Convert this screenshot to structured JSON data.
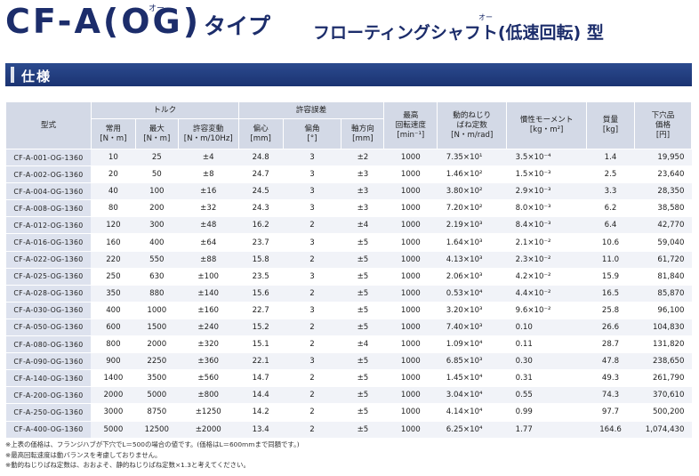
{
  "title": {
    "main_prefix": "CF-A",
    "main_paren_open": "(",
    "main_og": "OG",
    "main_paren_close": ")",
    "ruby_og": "オー",
    "type_label": "タイプ",
    "subtitle": "フローティングシャフト(低速回転) 型",
    "ruby_sub": "オー"
  },
  "section": {
    "label": "仕様"
  },
  "table": {
    "header": {
      "model": "型式",
      "torque_group": "トルク",
      "torque_rated": "常用",
      "torque_rated_unit": "[N・m]",
      "torque_max": "最大",
      "torque_max_unit": "[N・m]",
      "torque_var": "許容変動",
      "torque_var_unit": "[N・m/10Hz]",
      "misalign_group": "許容誤差",
      "offset": "偏心",
      "offset_unit": "[mm]",
      "angle": "偏角",
      "angle_unit": "[°]",
      "axial": "軸方向",
      "axial_unit": "[mm]",
      "speed_l1": "最高",
      "speed_l2": "回転速度",
      "speed_unit": "[min⁻¹]",
      "stiff_l1": "動的ねじり",
      "stiff_l2": "ばね定数",
      "stiff_unit": "[N・m/rad]",
      "inertia": "慣性モーメント",
      "inertia_unit": "[kg・m²]",
      "mass": "質量",
      "mass_unit": "[kg]",
      "price_l1": "下穴品",
      "price_l2": "価格",
      "price_unit": "[円]"
    },
    "rows": [
      [
        "CF-A-001-OG-1360",
        "10",
        "25",
        "±4",
        "24.8",
        "3",
        "±2",
        "1000",
        "7.35×10¹",
        "3.5×10⁻⁴",
        "1.4",
        "19,950"
      ],
      [
        "CF-A-002-OG-1360",
        "20",
        "50",
        "±8",
        "24.7",
        "3",
        "±3",
        "1000",
        "1.46×10²",
        "1.5×10⁻³",
        "2.5",
        "23,640"
      ],
      [
        "CF-A-004-OG-1360",
        "40",
        "100",
        "±16",
        "24.5",
        "3",
        "±3",
        "1000",
        "3.80×10²",
        "2.9×10⁻³",
        "3.3",
        "28,350"
      ],
      [
        "CF-A-008-OG-1360",
        "80",
        "200",
        "±32",
        "24.3",
        "3",
        "±3",
        "1000",
        "7.20×10²",
        "8.0×10⁻³",
        "6.2",
        "38,580"
      ],
      [
        "CF-A-012-OG-1360",
        "120",
        "300",
        "±48",
        "16.2",
        "2",
        "±4",
        "1000",
        "2.19×10³",
        "8.4×10⁻³",
        "6.4",
        "42,770"
      ],
      [
        "CF-A-016-OG-1360",
        "160",
        "400",
        "±64",
        "23.7",
        "3",
        "±5",
        "1000",
        "1.64×10³",
        "2.1×10⁻²",
        "10.6",
        "59,040"
      ],
      [
        "CF-A-022-OG-1360",
        "220",
        "550",
        "±88",
        "15.8",
        "2",
        "±5",
        "1000",
        "4.13×10³",
        "2.3×10⁻²",
        "11.0",
        "61,720"
      ],
      [
        "CF-A-025-OG-1360",
        "250",
        "630",
        "±100",
        "23.5",
        "3",
        "±5",
        "1000",
        "2.06×10³",
        "4.2×10⁻²",
        "15.9",
        "81,840"
      ],
      [
        "CF-A-028-OG-1360",
        "350",
        "880",
        "±140",
        "15.6",
        "2",
        "±5",
        "1000",
        "0.53×10⁴",
        "4.4×10⁻²",
        "16.5",
        "85,870"
      ],
      [
        "CF-A-030-OG-1360",
        "400",
        "1000",
        "±160",
        "22.7",
        "3",
        "±5",
        "1000",
        "3.20×10³",
        "9.6×10⁻²",
        "25.8",
        "96,100"
      ],
      [
        "CF-A-050-OG-1360",
        "600",
        "1500",
        "±240",
        "15.2",
        "2",
        "±5",
        "1000",
        "7.40×10³",
        "0.10",
        "26.6",
        "104,830"
      ],
      [
        "CF-A-080-OG-1360",
        "800",
        "2000",
        "±320",
        "15.1",
        "2",
        "±4",
        "1000",
        "1.09×10⁴",
        "0.11",
        "28.7",
        "131,820"
      ],
      [
        "CF-A-090-OG-1360",
        "900",
        "2250",
        "±360",
        "22.1",
        "3",
        "±5",
        "1000",
        "6.85×10³",
        "0.30",
        "47.8",
        "238,650"
      ],
      [
        "CF-A-140-OG-1360",
        "1400",
        "3500",
        "±560",
        "14.7",
        "2",
        "±5",
        "1000",
        "1.45×10⁴",
        "0.31",
        "49.3",
        "261,790"
      ],
      [
        "CF-A-200-OG-1360",
        "2000",
        "5000",
        "±800",
        "14.4",
        "2",
        "±5",
        "1000",
        "3.04×10⁴",
        "0.55",
        "74.3",
        "370,610"
      ],
      [
        "CF-A-250-OG-1360",
        "3000",
        "8750",
        "±1250",
        "14.2",
        "2",
        "±5",
        "1000",
        "4.14×10⁴",
        "0.99",
        "97.7",
        "500,200"
      ],
      [
        "CF-A-400-OG-1360",
        "5000",
        "12500",
        "±2000",
        "13.4",
        "2",
        "±5",
        "1000",
        "6.25×10⁴",
        "1.77",
        "164.6",
        "1,074,430"
      ]
    ]
  },
  "notes": [
    "※上表の価格は、フランジハブが下穴でL＝500の場合の値です。(価格はL＝600mmまで同額です。)",
    "※最高回転速度は動バランスを考慮しておりません。",
    "※動的ねじりばね定数は、おおよそ、静的ねじりばね定数×1.3と考えてください。"
  ]
}
